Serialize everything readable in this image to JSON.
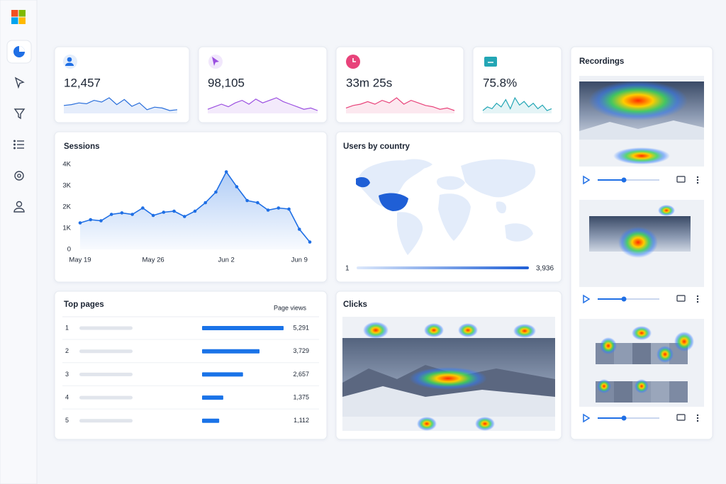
{
  "kpis": [
    {
      "value": "12,457"
    },
    {
      "value": "98,105"
    },
    {
      "value": "33m 25s"
    },
    {
      "value": "75.8%"
    }
  ],
  "map": {
    "title": "Users by country",
    "scale_min": "1",
    "scale_max": "3,936"
  },
  "clicks": {
    "title": "Clicks"
  },
  "recordings": {
    "title": "Recordings"
  },
  "chart_data": [
    {
      "type": "line",
      "title": "Sessions",
      "categories": [
        "May 19",
        null,
        null,
        null,
        null,
        null,
        null,
        "May 26",
        null,
        null,
        null,
        null,
        null,
        null,
        "Jun 2",
        null,
        null,
        null,
        null,
        null,
        null,
        "Jun 9",
        null
      ],
      "values": [
        1250,
        1400,
        1350,
        1650,
        1720,
        1650,
        1950,
        1600,
        1750,
        1800,
        1550,
        1800,
        2200,
        2700,
        3650,
        2950,
        2300,
        2200,
        1850,
        1950,
        1900,
        950,
        350
      ],
      "ylim": [
        0,
        4000
      ],
      "yticks": [
        0,
        {
          "value": 1000,
          "label": "1K"
        },
        {
          "value": 2000,
          "label": "2K"
        },
        {
          "value": 3000,
          "label": "3K"
        },
        {
          "value": 4000,
          "label": "4K"
        }
      ],
      "color": "#1f6fe5",
      "grid": false
    },
    {
      "type": "hbar",
      "title": "Top pages",
      "value_header": "Page views",
      "categories": [
        "1",
        "2",
        "3",
        "4",
        "5"
      ],
      "values": [
        5291,
        3729,
        2657,
        1375,
        1112
      ],
      "value_labels": [
        "5,291",
        "3,729",
        "2,657",
        "1,375",
        "1,112"
      ],
      "color": "#1a73e8"
    },
    {
      "type": "sparkline",
      "color": "#2a6fdb",
      "values": [
        22,
        23,
        25,
        24,
        28,
        26,
        31,
        23,
        29,
        21,
        25,
        17,
        20,
        19,
        16,
        17
      ]
    },
    {
      "type": "sparkline",
      "color": "#9b4fe0",
      "values": [
        20,
        22,
        24,
        22,
        25,
        27,
        24,
        28,
        25,
        27,
        29,
        26,
        24,
        22,
        20,
        21,
        19
      ]
    },
    {
      "type": "sparkline",
      "color": "#e8437a",
      "values": [
        21,
        23,
        24,
        26,
        24,
        27,
        25,
        29,
        24,
        27,
        25,
        23,
        22,
        20,
        21,
        19
      ]
    },
    {
      "type": "sparkline",
      "color": "#23a6b5",
      "values": [
        20,
        22,
        21,
        24,
        22,
        26,
        21,
        27,
        23,
        25,
        22,
        24,
        21,
        23,
        20,
        21
      ]
    }
  ]
}
